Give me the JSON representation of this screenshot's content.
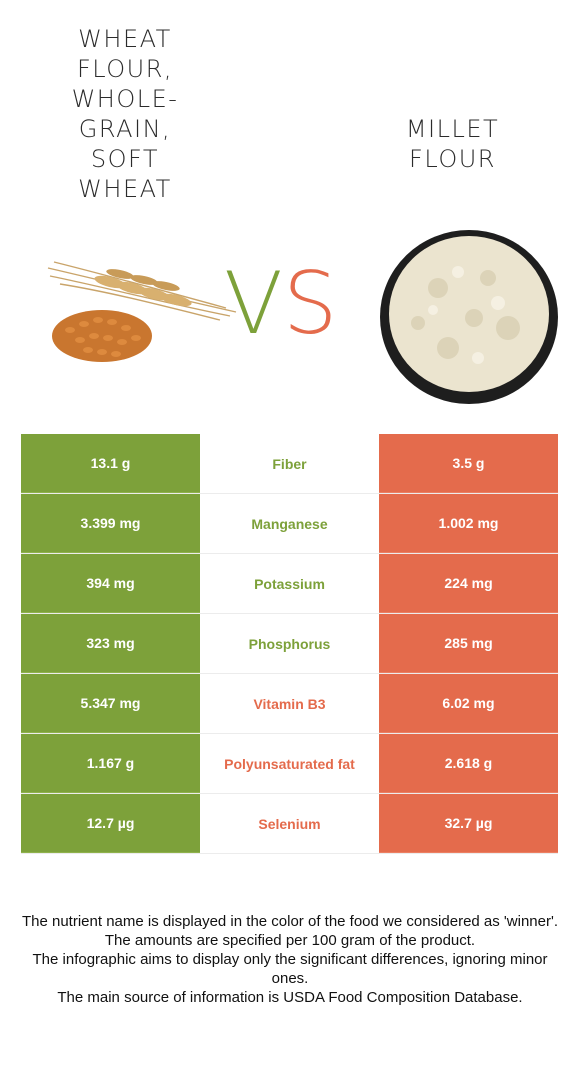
{
  "left_food": {
    "name": "WHEAT FLOUR, WHOLE-GRAIN, SOFT WHEAT",
    "color": "#7da13a",
    "image": "wheat-grain-image"
  },
  "right_food": {
    "name": "MILLET FLOUR",
    "color": "#e46b4c",
    "image": "flour-bowl-image"
  },
  "vs": {
    "v": "V",
    "s": "S"
  },
  "rows": [
    {
      "left": "13.1 g",
      "nutrient": "Fiber",
      "right": "3.5 g",
      "winner": "left"
    },
    {
      "left": "3.399 mg",
      "nutrient": "Manganese",
      "right": "1.002 mg",
      "winner": "left"
    },
    {
      "left": "394 mg",
      "nutrient": "Potassium",
      "right": "224 mg",
      "winner": "left"
    },
    {
      "left": "323 mg",
      "nutrient": "Phosphorus",
      "right": "285 mg",
      "winner": "left"
    },
    {
      "left": "5.347 mg",
      "nutrient": "Vitamin B3",
      "right": "6.02 mg",
      "winner": "right"
    },
    {
      "left": "1.167 g",
      "nutrient": "Polyunsaturated fat",
      "right": "2.618 g",
      "winner": "right"
    },
    {
      "left": "12.7 µg",
      "nutrient": "Selenium",
      "right": "32.7 µg",
      "winner": "right"
    }
  ],
  "footnotes": [
    "The nutrient name is displayed in the color of the food we considered as 'winner'.",
    "The amounts are specified per 100 gram of the product.",
    "The infographic aims to display only the significant differences, ignoring minor ones.",
    "The main source of information is USDA Food Composition Database."
  ]
}
